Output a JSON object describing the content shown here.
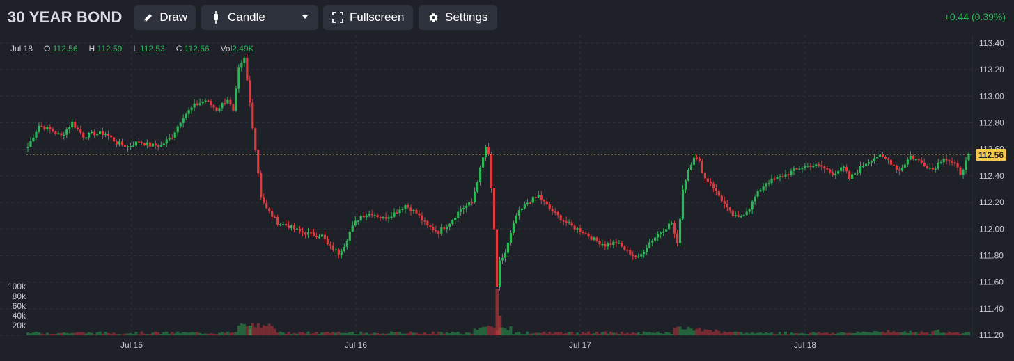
{
  "header": {
    "title": "30 YEAR BOND",
    "draw_label": "Draw",
    "chart_type_label": "Candle",
    "fullscreen_label": "Fullscreen",
    "settings_label": "Settings",
    "change": "+0.44 (0.39%)"
  },
  "ohlc": {
    "date": "Jul 18",
    "o_label": "O",
    "o": "112.56",
    "h_label": "H",
    "h": "112.59",
    "l_label": "L",
    "l": "112.53",
    "c_label": "C",
    "c": "112.56",
    "vol_label": "Vol",
    "vol": "2.49K"
  },
  "colors": {
    "up": "#2fb457",
    "down": "#e0393e",
    "background": "#1e2128",
    "price_tag": "#f2c94c"
  },
  "last_price_label": "112.56",
  "chart_data": {
    "type": "candlestick",
    "y_ticks": [
      "113.40",
      "113.20",
      "113.00",
      "112.80",
      "112.60",
      "112.40",
      "112.20",
      "112.00",
      "111.80",
      "111.60",
      "111.40",
      "111.20"
    ],
    "ylim": [
      111.2,
      113.4
    ],
    "x_ticks": [
      "Jul 15",
      "Jul 16",
      "Jul 17",
      "Jul 18"
    ],
    "volume_ticks": [
      "100k",
      "80k",
      "60k",
      "40k",
      "20k"
    ],
    "grid": true,
    "close_path": [
      [
        0,
        112.62
      ],
      [
        4,
        112.78
      ],
      [
        8,
        112.75
      ],
      [
        12,
        112.7
      ],
      [
        16,
        112.8
      ],
      [
        20,
        112.7
      ],
      [
        24,
        112.72
      ],
      [
        28,
        112.72
      ],
      [
        32,
        112.65
      ],
      [
        36,
        112.62
      ],
      [
        40,
        112.66
      ],
      [
        44,
        112.63
      ],
      [
        48,
        112.63
      ],
      [
        52,
        112.7
      ],
      [
        56,
        112.85
      ],
      [
        60,
        112.93
      ],
      [
        64,
        112.97
      ],
      [
        68,
        112.9
      ],
      [
        72,
        112.98
      ],
      [
        74,
        112.88
      ],
      [
        76,
        113.2
      ],
      [
        78,
        113.28
      ],
      [
        80,
        112.95
      ],
      [
        82,
        112.6
      ],
      [
        84,
        112.25
      ],
      [
        86,
        112.15
      ],
      [
        90,
        112.05
      ],
      [
        94,
        112.02
      ],
      [
        98,
        111.98
      ],
      [
        102,
        111.96
      ],
      [
        106,
        111.95
      ],
      [
        108,
        111.88
      ],
      [
        110,
        111.85
      ],
      [
        112,
        111.82
      ],
      [
        114,
        111.88
      ],
      [
        116,
        111.98
      ],
      [
        118,
        112.05
      ],
      [
        120,
        112.1
      ],
      [
        124,
        112.12
      ],
      [
        128,
        112.08
      ],
      [
        132,
        112.12
      ],
      [
        136,
        112.18
      ],
      [
        140,
        112.12
      ],
      [
        144,
        112.02
      ],
      [
        148,
        111.98
      ],
      [
        152,
        112.05
      ],
      [
        156,
        112.15
      ],
      [
        160,
        112.2
      ],
      [
        163,
        112.45
      ],
      [
        165,
        112.62
      ],
      [
        166,
        112.55
      ],
      [
        167,
        112.3
      ],
      [
        168,
        112.0
      ],
      [
        169,
        111.55
      ],
      [
        170,
        111.75
      ],
      [
        172,
        111.82
      ],
      [
        176,
        112.1
      ],
      [
        180,
        112.2
      ],
      [
        184,
        112.25
      ],
      [
        188,
        112.15
      ],
      [
        192,
        112.08
      ],
      [
        196,
        112.02
      ],
      [
        200,
        111.98
      ],
      [
        204,
        111.92
      ],
      [
        208,
        111.88
      ],
      [
        212,
        111.9
      ],
      [
        216,
        111.83
      ],
      [
        220,
        111.78
      ],
      [
        224,
        111.9
      ],
      [
        228,
        111.98
      ],
      [
        232,
        112.05
      ],
      [
        234,
        111.88
      ],
      [
        236,
        112.3
      ],
      [
        238,
        112.45
      ],
      [
        240,
        112.55
      ],
      [
        242,
        112.5
      ],
      [
        244,
        112.38
      ],
      [
        246,
        112.35
      ],
      [
        248,
        112.28
      ],
      [
        250,
        112.22
      ],
      [
        252,
        112.15
      ],
      [
        254,
        112.1
      ],
      [
        256,
        112.08
      ],
      [
        258,
        112.12
      ],
      [
        260,
        112.16
      ],
      [
        262,
        112.24
      ],
      [
        264,
        112.3
      ],
      [
        266,
        112.35
      ],
      [
        270,
        112.38
      ],
      [
        274,
        112.42
      ],
      [
        278,
        112.46
      ],
      [
        282,
        112.48
      ],
      [
        286,
        112.47
      ],
      [
        290,
        112.42
      ],
      [
        294,
        112.46
      ],
      [
        296,
        112.38
      ],
      [
        298,
        112.42
      ],
      [
        302,
        112.5
      ],
      [
        306,
        112.55
      ],
      [
        310,
        112.52
      ],
      [
        314,
        112.44
      ],
      [
        318,
        112.55
      ],
      [
        322,
        112.5
      ],
      [
        326,
        112.45
      ],
      [
        330,
        112.54
      ],
      [
        334,
        112.48
      ],
      [
        336,
        112.42
      ],
      [
        339,
        112.55
      ]
    ],
    "volume_spikes": [
      {
        "pos": 169,
        "volume": 95000,
        "direction": "down"
      },
      {
        "pos": 170,
        "volume": 40000,
        "direction": "down"
      },
      {
        "pos": 80,
        "volume": 20000,
        "direction": "up"
      }
    ]
  }
}
